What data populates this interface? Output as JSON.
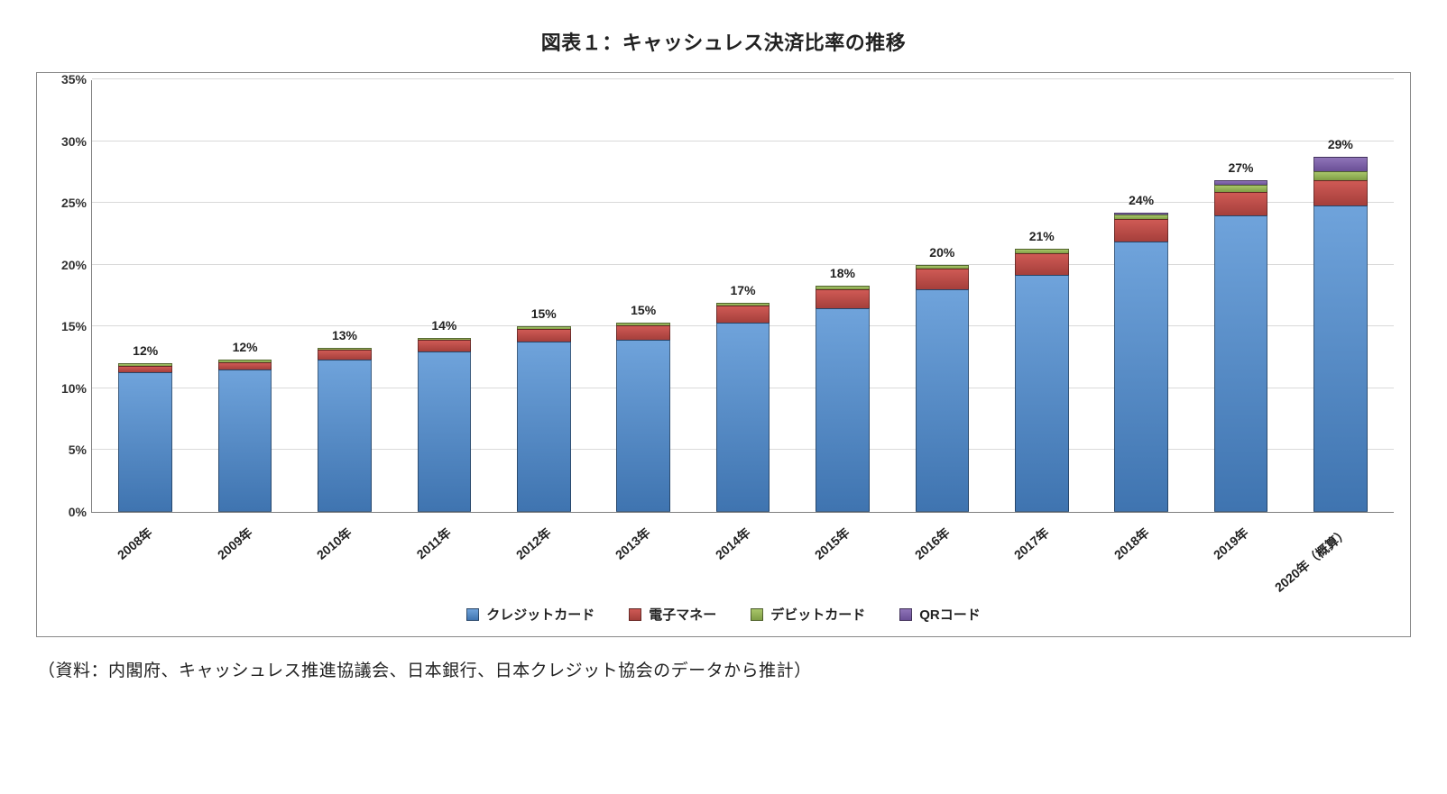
{
  "title": "図表１：キャッシュレス決済比率の推移",
  "source_note": "（資料：内閣府、キャッシュレス推進協議会、日本銀行、日本クレジット協会のデータから推計）",
  "chart": {
    "type": "stacked-bar",
    "y_axis": {
      "min": 0,
      "max": 35,
      "tick_step": 5,
      "unit_suffix": "%",
      "tick_labels": [
        "0%",
        "5%",
        "10%",
        "15%",
        "20%",
        "25%",
        "30%",
        "35%"
      ]
    },
    "grid_color": "#d9d9d9",
    "axis_color": "#7f7f7f",
    "background_color": "#ffffff",
    "bar_width_ratio": 0.54,
    "series": [
      {
        "key": "credit",
        "label": "クレジットカード",
        "color_top": "#6fa3db",
        "color_bottom": "#3f74b0"
      },
      {
        "key": "emoney",
        "label": "電子マネー",
        "color_top": "#cf5a55",
        "color_bottom": "#a53f3b"
      },
      {
        "key": "debit",
        "label": "デビットカード",
        "color_top": "#a9c66a",
        "color_bottom": "#7f9e45"
      },
      {
        "key": "qr",
        "label": "QRコード",
        "color_top": "#8f74b8",
        "color_bottom": "#6a4f96"
      }
    ],
    "categories": [
      {
        "label": "2008年",
        "total_label": "12%",
        "values": {
          "credit": 11.3,
          "emoney": 0.5,
          "debit": 0.2,
          "qr": 0.0
        }
      },
      {
        "label": "2009年",
        "total_label": "12%",
        "values": {
          "credit": 11.5,
          "emoney": 0.6,
          "debit": 0.2,
          "qr": 0.0
        }
      },
      {
        "label": "2010年",
        "total_label": "13%",
        "values": {
          "credit": 12.3,
          "emoney": 0.8,
          "debit": 0.2,
          "qr": 0.0
        }
      },
      {
        "label": "2011年",
        "total_label": "14%",
        "values": {
          "credit": 13.0,
          "emoney": 0.9,
          "debit": 0.2,
          "qr": 0.0
        }
      },
      {
        "label": "2012年",
        "total_label": "15%",
        "values": {
          "credit": 13.8,
          "emoney": 1.0,
          "debit": 0.2,
          "qr": 0.0
        }
      },
      {
        "label": "2013年",
        "total_label": "15%",
        "values": {
          "credit": 13.9,
          "emoney": 1.2,
          "debit": 0.2,
          "qr": 0.0
        }
      },
      {
        "label": "2014年",
        "total_label": "17%",
        "values": {
          "credit": 15.3,
          "emoney": 1.4,
          "debit": 0.2,
          "qr": 0.0
        }
      },
      {
        "label": "2015年",
        "total_label": "18%",
        "values": {
          "credit": 16.5,
          "emoney": 1.5,
          "debit": 0.3,
          "qr": 0.0
        }
      },
      {
        "label": "2016年",
        "total_label": "20%",
        "values": {
          "credit": 18.0,
          "emoney": 1.7,
          "debit": 0.3,
          "qr": 0.0
        }
      },
      {
        "label": "2017年",
        "total_label": "21%",
        "values": {
          "credit": 19.2,
          "emoney": 1.7,
          "debit": 0.4,
          "qr": 0.0
        }
      },
      {
        "label": "2018年",
        "total_label": "24%",
        "values": {
          "credit": 21.9,
          "emoney": 1.8,
          "debit": 0.4,
          "qr": 0.1
        }
      },
      {
        "label": "2019年",
        "total_label": "27%",
        "values": {
          "credit": 24.0,
          "emoney": 1.9,
          "debit": 0.6,
          "qr": 0.3
        }
      },
      {
        "label": "2020年（概算）",
        "total_label": "29%",
        "values": {
          "credit": 24.8,
          "emoney": 2.0,
          "debit": 0.8,
          "qr": 1.1
        }
      }
    ],
    "label_fontsize_pt": 14,
    "axis_fontsize_pt": 14,
    "legend_fontsize_pt": 15
  }
}
